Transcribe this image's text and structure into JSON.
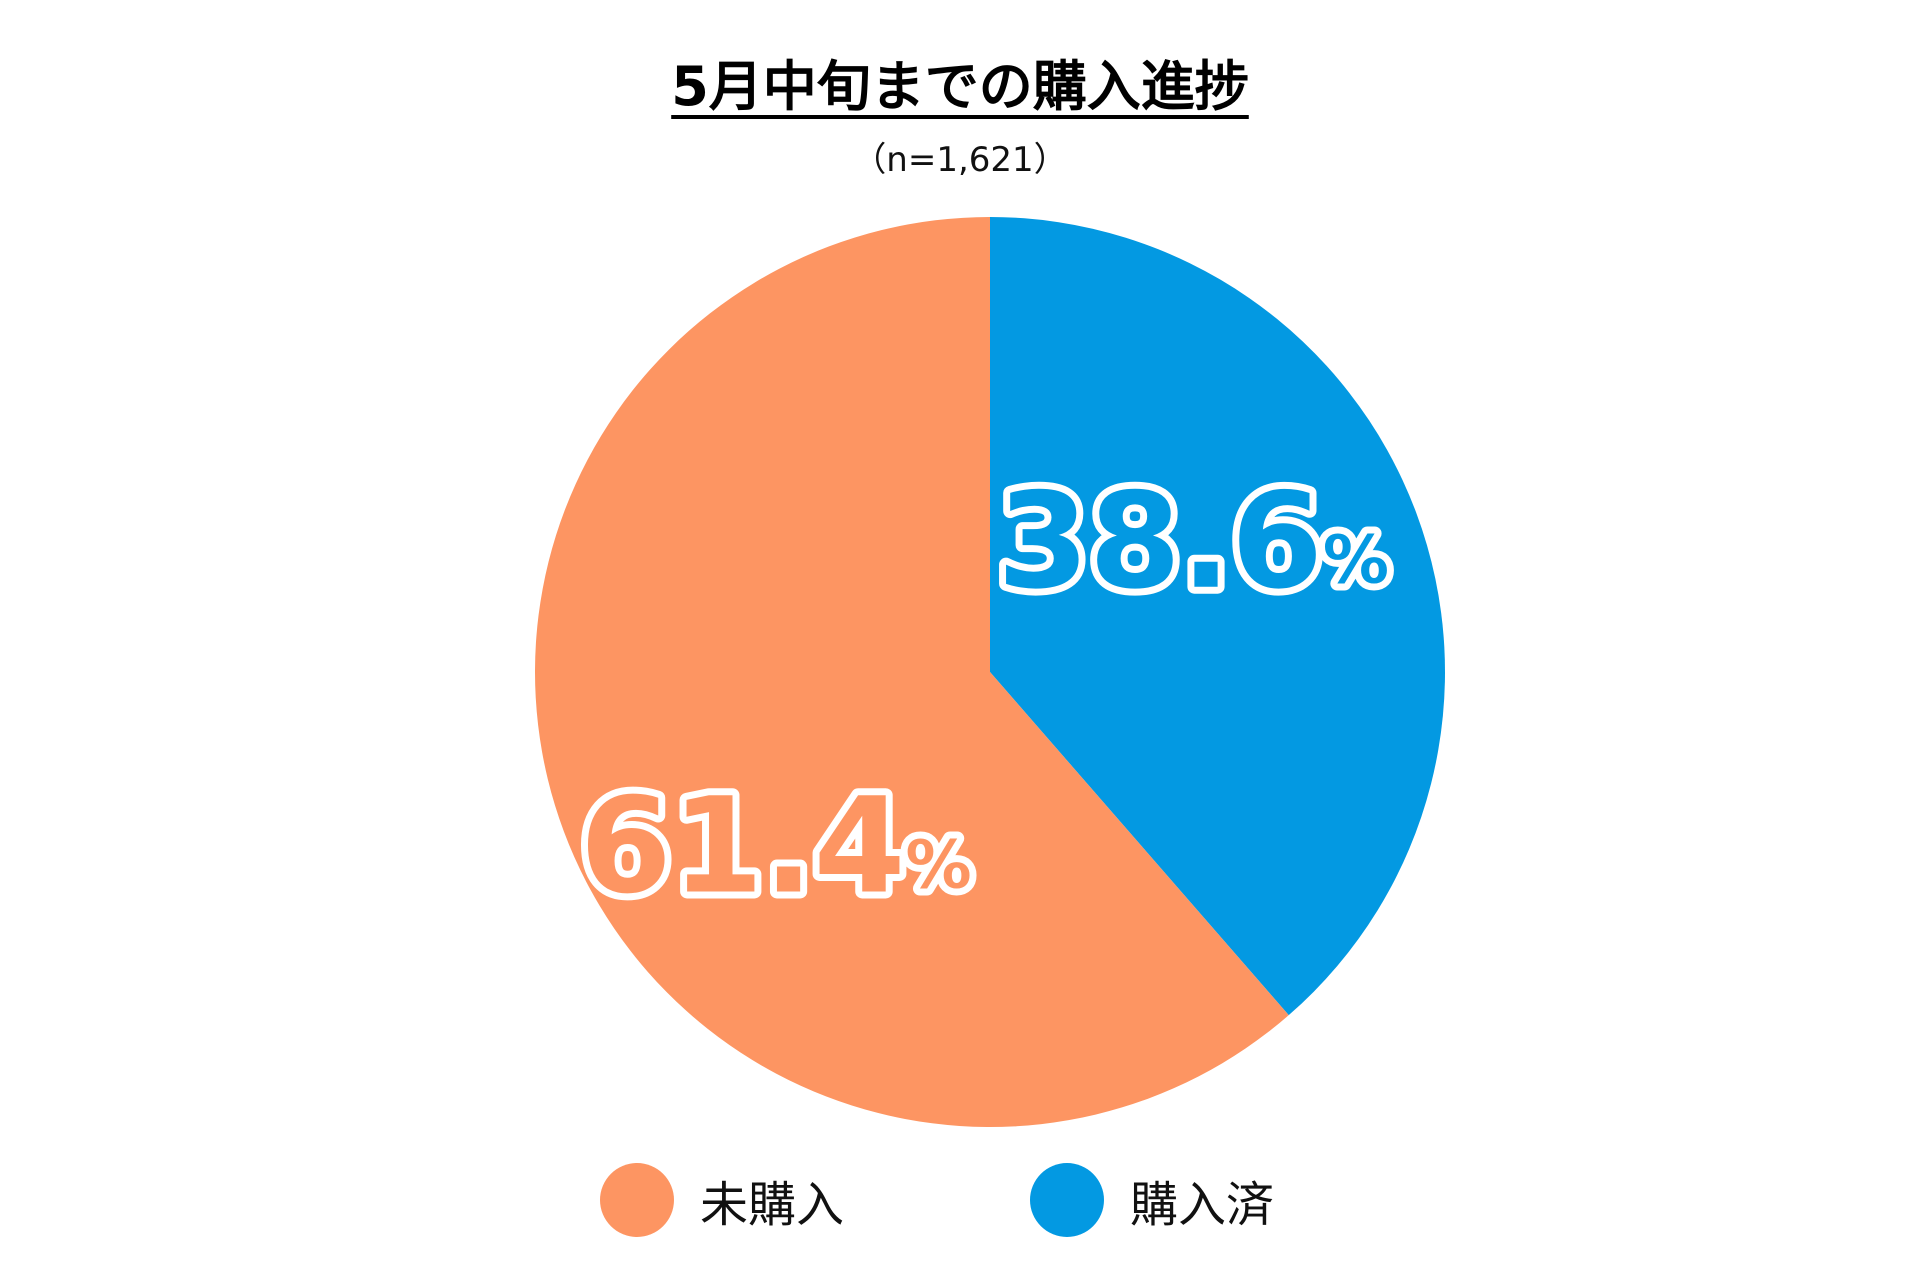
{
  "chart_data": {
    "type": "pie",
    "title": "5月中旬までの購入進捗",
    "subtitle": "（n=1,621）",
    "start_angle_deg": 0,
    "direction": "clockwise",
    "slices": [
      {
        "name": "購入済",
        "value": 38.6,
        "label": "38.6",
        "unit": "%",
        "color": "#0399e2"
      },
      {
        "name": "未購入",
        "value": 61.4,
        "label": "61.4",
        "unit": "%",
        "color": "#fd9562"
      }
    ],
    "legend": {
      "position": "bottom",
      "items": [
        {
          "label": "未購入",
          "color": "#fd9562"
        },
        {
          "label": "購入済",
          "color": "#0399e2"
        }
      ]
    }
  }
}
